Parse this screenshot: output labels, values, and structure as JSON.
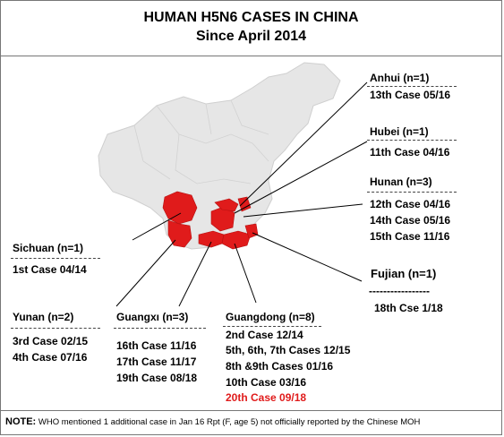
{
  "title": "HUMAN H5N6 CASES IN CHINA",
  "subtitle": "Since April 2014",
  "colors": {
    "affected": "#e01b1b",
    "china": "#e6e6e6",
    "border": "#cccccc",
    "highlight": "#e01b1b"
  },
  "provinces": [
    {
      "id": "anhui",
      "name": "Anhui (n=1)",
      "cases": [
        "13th Case 05/16"
      ]
    },
    {
      "id": "hubei",
      "name": "Hubei   (n=1)",
      "cases": [
        "11th Case 04/16"
      ]
    },
    {
      "id": "hunan",
      "name": "Hunan  (n=3)",
      "cases": [
        "12th Case 04/16",
        "14th Case 05/16",
        "15th Case 11/16"
      ]
    },
    {
      "id": "sichuan",
      "name": "Sichuan  (n=1)",
      "cases": [
        "1st Case 04/14"
      ]
    },
    {
      "id": "fujian",
      "name": "Fujian  (n=1)",
      "separator": "-----------------",
      "cases": [
        "18th Cse 1/18"
      ]
    },
    {
      "id": "yunan",
      "name": "Yunan (n=2)",
      "cases": [
        "3rd Case 02/15",
        "4th Case 07/16"
      ]
    },
    {
      "id": "guangxi",
      "name": "Guangxı (n=3)",
      "cases": [
        "16th Case 11/16",
        "17th Case 11/17",
        "19th Case 08/18"
      ]
    },
    {
      "id": "guangdong",
      "name": "Guangdong (n=8)",
      "cases": [
        "2nd Case 12/14",
        "5th, 6th, 7th Cases 12/15",
        "8th &9th Cases 01/16",
        "10th Case 03/16",
        "20th Case  09/18"
      ],
      "highlight_case_index": 4
    }
  ],
  "note": {
    "label": "NOTE:",
    "text": " WHO mentioned 1 additional case in Jan 16  Rpt  (F, age 5) not  officially reported by the Chinese MOH"
  }
}
